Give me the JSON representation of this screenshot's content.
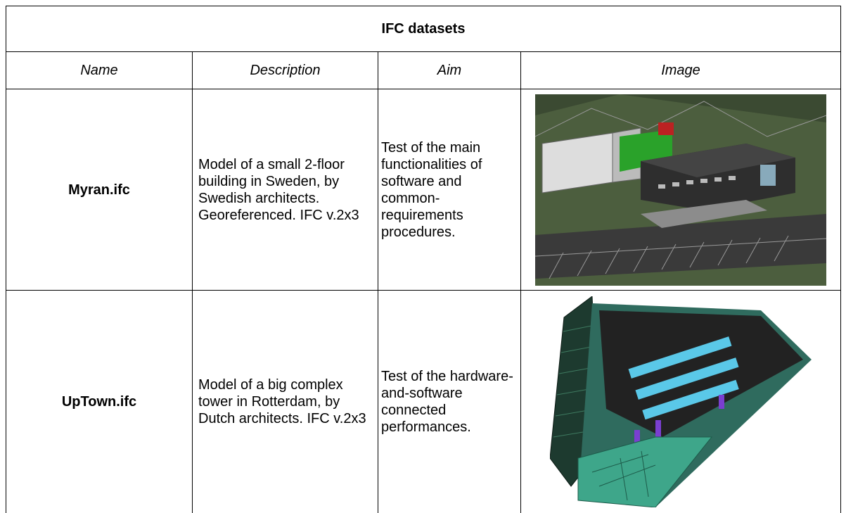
{
  "table": {
    "title": "IFC datasets",
    "header": [
      "Name",
      "Description",
      "Aim",
      "Image"
    ],
    "rows": [
      [
        "Myran.ifc",
        "Model of a small 2-floor building in Sweden, by Swedish architects. Georeferenced. IFC v.2x3",
        "Test of the main functionalities of software and common-requirements procedures."
      ],
      [
        "UpTown.ifc",
        "Model of a big complex tower in Rotterdam, by Dutch architects. IFC v.2x3",
        "Test of the hardware-and-software connected performances."
      ]
    ]
  }
}
